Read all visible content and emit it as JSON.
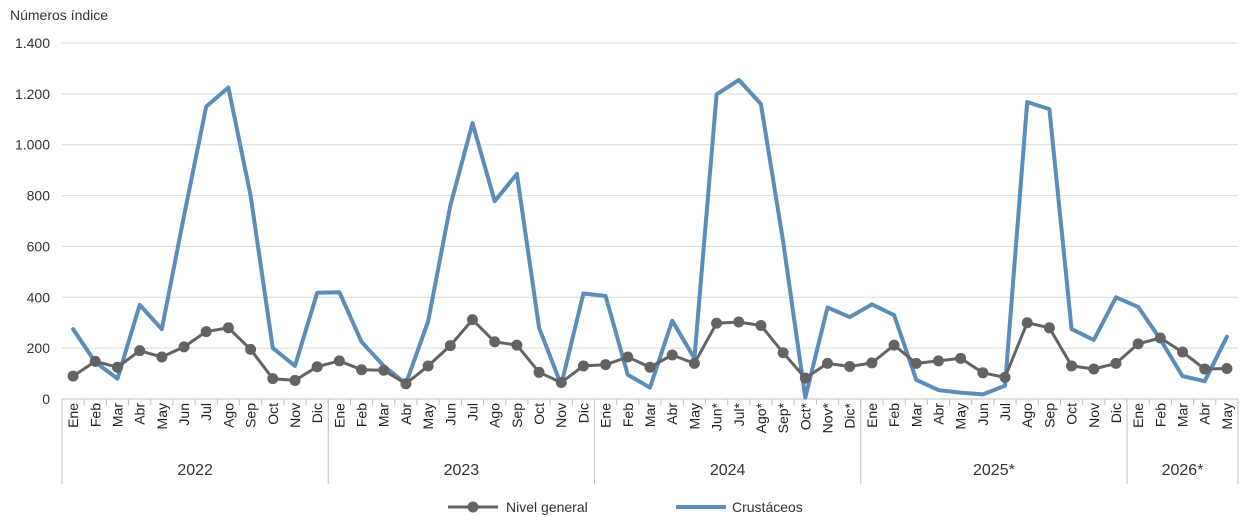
{
  "chart_data": {
    "type": "line",
    "ylabel": "Números índice",
    "ylim": [
      0,
      1400
    ],
    "yticks": [
      0,
      200,
      400,
      600,
      800,
      1000,
      1200,
      1400
    ],
    "ytick_labels": [
      "0",
      "200",
      "400",
      "600",
      "800",
      "1.000",
      "1.200",
      "1.400"
    ],
    "grid": "horizontal",
    "legend_position": "bottom-center",
    "categories": [
      "Ene",
      "Feb",
      "Mar",
      "Abr",
      "May",
      "Jun",
      "Jul",
      "Ago",
      "Sep",
      "Oct",
      "Nov",
      "Dic",
      "Ene",
      "Feb",
      "Mar",
      "Abr",
      "May",
      "Jun",
      "Jul",
      "Ago",
      "Sep",
      "Oct",
      "Nov",
      "Dic",
      "Ene",
      "Feb",
      "Mar",
      "Abr",
      "May",
      "Jun*",
      "Jul*",
      "Ago*",
      "Sep*",
      "Oct*",
      "Nov*",
      "Dic*",
      "Ene",
      "Feb",
      "Mar",
      "Abr",
      "May",
      "Jun",
      "Jul",
      "Ago",
      "Sep",
      "Oct",
      "Nov",
      "Dic",
      "Ene",
      "Feb",
      "Mar",
      "Abr",
      "May"
    ],
    "year_groups": [
      {
        "label": "2022",
        "count": 12
      },
      {
        "label": "2023",
        "count": 12
      },
      {
        "label": "2024",
        "count": 12
      },
      {
        "label": "2025*",
        "count": 12
      },
      {
        "label": "2026*",
        "count": 5
      }
    ],
    "series": [
      {
        "name": "Nivel general",
        "color": "#636363",
        "marker": "circle",
        "values": [
          90,
          148,
          125,
          190,
          165,
          205,
          265,
          280,
          195,
          80,
          73,
          127,
          150,
          115,
          113,
          60,
          130,
          210,
          312,
          225,
          212,
          105,
          65,
          130,
          135,
          165,
          125,
          173,
          140,
          298,
          303,
          289,
          182,
          82,
          140,
          128,
          142,
          212,
          140,
          150,
          160,
          103,
          85,
          300,
          280,
          130,
          118,
          140,
          217,
          240,
          185,
          118,
          120
        ]
      },
      {
        "name": "Crustáceos",
        "color": "#5b8db8",
        "marker": "none",
        "values": [
          275,
          145,
          80,
          370,
          275,
          720,
          1150,
          1225,
          800,
          200,
          130,
          418,
          420,
          225,
          130,
          60,
          305,
          760,
          1085,
          778,
          885,
          280,
          55,
          415,
          405,
          95,
          45,
          308,
          160,
          1198,
          1255,
          1160,
          620,
          5,
          360,
          322,
          372,
          330,
          75,
          35,
          25,
          18,
          52,
          1168,
          1140,
          275,
          232,
          400,
          362,
          235,
          90,
          70,
          245
        ]
      }
    ]
  }
}
